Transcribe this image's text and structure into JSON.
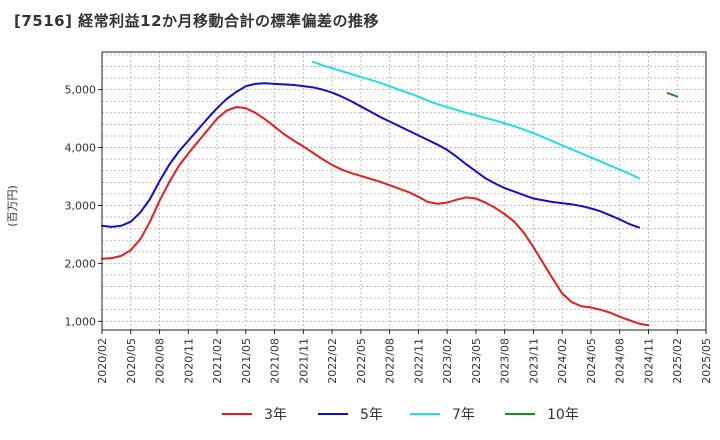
{
  "chart_data": {
    "type": "line",
    "title": "[7516]  経常利益12か月移動合計の標準偏差の推移",
    "ylabel": "(百万円)",
    "xlabel": "",
    "ylim": [
      850,
      5650
    ],
    "yticks": [
      1000,
      2000,
      3000,
      4000,
      5000
    ],
    "ytick_labels": [
      "1,000",
      "2,000",
      "3,000",
      "4,000",
      "5,000"
    ],
    "x_range": [
      "2020/02",
      "2025/05"
    ],
    "xtick_labels": [
      "2020/02",
      "2020/05",
      "2020/08",
      "2020/11",
      "2021/02",
      "2021/05",
      "2021/08",
      "2021/11",
      "2022/02",
      "2022/05",
      "2022/08",
      "2022/11",
      "2023/02",
      "2023/05",
      "2023/08",
      "2023/11",
      "2024/02",
      "2024/05",
      "2024/08",
      "2024/11",
      "2025/02",
      "2025/05"
    ],
    "grid": true,
    "legend_position": "bottom",
    "series": [
      {
        "name": "3年",
        "color": "#e02020",
        "start": "2020/02",
        "values": [
          2080,
          2090,
          2130,
          2230,
          2420,
          2720,
          3080,
          3400,
          3680,
          3900,
          4100,
          4300,
          4500,
          4640,
          4700,
          4680,
          4600,
          4490,
          4360,
          4230,
          4120,
          4020,
          3910,
          3800,
          3700,
          3620,
          3560,
          3510,
          3460,
          3410,
          3350,
          3290,
          3230,
          3150,
          3060,
          3030,
          3050,
          3100,
          3140,
          3120,
          3050,
          2960,
          2850,
          2720,
          2530,
          2280,
          2010,
          1740,
          1480,
          1330,
          1260,
          1240,
          1200,
          1150,
          1080,
          1020,
          960,
          930
        ]
      },
      {
        "name": "5年",
        "color": "#1010c8",
        "start": "2020/02",
        "values": [
          2650,
          2630,
          2650,
          2720,
          2880,
          3110,
          3420,
          3700,
          3930,
          4120,
          4310,
          4500,
          4680,
          4840,
          4960,
          5060,
          5100,
          5110,
          5100,
          5090,
          5080,
          5060,
          5040,
          5000,
          4950,
          4880,
          4800,
          4710,
          4620,
          4530,
          4450,
          4370,
          4290,
          4210,
          4130,
          4050,
          3960,
          3840,
          3710,
          3590,
          3470,
          3380,
          3300,
          3240,
          3180,
          3120,
          3090,
          3060,
          3040,
          3020,
          2990,
          2950,
          2900,
          2830,
          2760,
          2680,
          2620
        ]
      },
      {
        "name": "7年",
        "color": "#22e0e0",
        "start": "2021/12",
        "values": [
          5480,
          5420,
          5370,
          5320,
          5270,
          5220,
          5170,
          5120,
          5060,
          5000,
          4940,
          4880,
          4810,
          4750,
          4700,
          4650,
          4600,
          4560,
          4510,
          4470,
          4420,
          4370,
          4310,
          4250,
          4180,
          4110,
          4040,
          3970,
          3900,
          3830,
          3760,
          3690,
          3620,
          3550,
          3470
        ]
      },
      {
        "name": "10年",
        "color": "#228822",
        "start": "2025/01",
        "values": [
          4940,
          4880
        ]
      }
    ]
  }
}
